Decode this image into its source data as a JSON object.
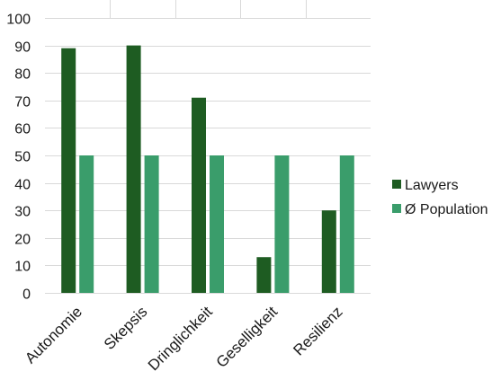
{
  "chart_data": {
    "type": "bar",
    "categories": [
      "Autonomie",
      "Skepsis",
      "Dringlichkeit",
      "Geselligkeit",
      "Resilienz"
    ],
    "series": [
      {
        "name": "Lawyers",
        "values": [
          89,
          90,
          71,
          13,
          30
        ],
        "color": "#1e5c22"
      },
      {
        "name": "Ø Population",
        "values": [
          50,
          50,
          50,
          50,
          50
        ],
        "color": "#3a9d6b"
      }
    ],
    "ylim": [
      0,
      100
    ],
    "yticks": [
      "0",
      "10",
      "20",
      "30",
      "40",
      "50",
      "60",
      "70",
      "80",
      "90",
      "100"
    ],
    "title": "",
    "xlabel": "",
    "ylabel": "",
    "grid": true,
    "legend_position": "right"
  }
}
